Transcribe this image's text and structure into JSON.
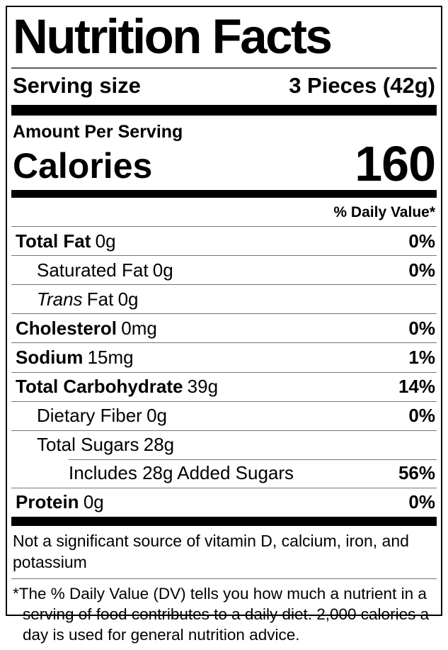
{
  "label": {
    "title": "Nutrition Facts",
    "serving": {
      "label": "Serving size",
      "value": "3 Pieces (42g)"
    },
    "amount_per_serving": "Amount Per Serving",
    "calories": {
      "label": "Calories",
      "value": "160"
    },
    "daily_value_header": "% Daily Value*",
    "rows": [
      {
        "name": "Total Fat",
        "amount": "0g",
        "dv": "0%"
      },
      {
        "name": "Saturated Fat",
        "amount": "0g",
        "dv": "0%"
      },
      {
        "name_italic": "Trans",
        "name": "Fat",
        "amount": "0g",
        "dv": ""
      },
      {
        "name": "Cholesterol",
        "amount": "0mg",
        "dv": "0%"
      },
      {
        "name": "Sodium",
        "amount": "15mg",
        "dv": "1%"
      },
      {
        "name": "Total Carbohydrate",
        "amount": "39g",
        "dv": "14%"
      },
      {
        "name": "Dietary Fiber",
        "amount": "0g",
        "dv": "0%"
      },
      {
        "name": "Total Sugars",
        "amount": "28g",
        "dv": ""
      },
      {
        "name": "Includes 28g Added Sugars",
        "amount": "",
        "dv": "56%"
      },
      {
        "name": "Protein",
        "amount": "0g",
        "dv": "0%"
      }
    ],
    "not_significant": "Not a significant source of vitamin D, calcium, iron, and potassium",
    "footnote": "*The % Daily Value (DV) tells you how much a nutrient in a serving of food contributes to a daily diet. 2,000 calories a day is used for general nutrition advice.",
    "colors": {
      "text": "#000000",
      "background": "#ffffff",
      "hairline": "#767676"
    }
  }
}
